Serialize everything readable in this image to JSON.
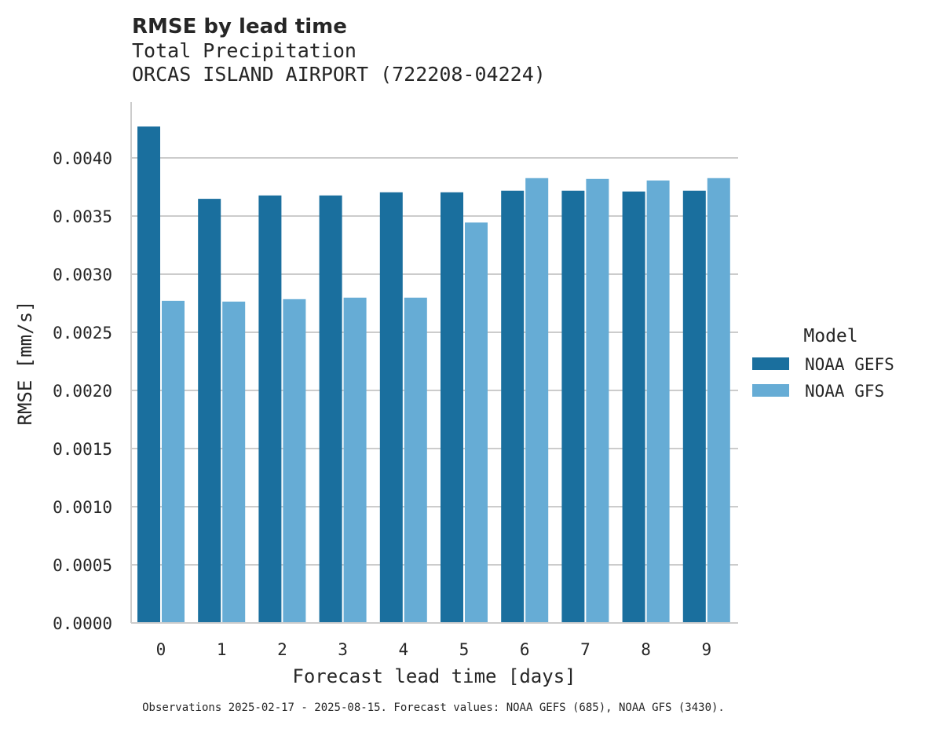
{
  "chart_data": {
    "type": "bar",
    "title": "RMSE by lead time",
    "subtitle_line1": "Total Precipitation",
    "subtitle_line2": "ORCAS ISLAND AIRPORT (722208-04224)",
    "xlabel": "Forecast lead time [days]",
    "ylabel": "RMSE [mm/s]",
    "categories": [
      "0",
      "1",
      "2",
      "3",
      "4",
      "5",
      "6",
      "7",
      "8",
      "9"
    ],
    "ylim": [
      0,
      0.0045
    ],
    "yticks": [
      0.0,
      0.0005,
      0.001,
      0.0015,
      0.002,
      0.0025,
      0.003,
      0.0035,
      0.004
    ],
    "ytick_labels": [
      "0.0000",
      "0.0005",
      "0.0010",
      "0.0015",
      "0.0020",
      "0.0025",
      "0.0030",
      "0.0035",
      "0.0040"
    ],
    "grid": "horizontal",
    "legend": {
      "title": "Model",
      "placement": "right"
    },
    "series": [
      {
        "name": "NOAA GEFS",
        "color": "#1a6f9e",
        "values": [
          0.00427,
          0.003648,
          0.003677,
          0.003677,
          0.003704,
          0.003704,
          0.003718,
          0.003718,
          0.003711,
          0.003718
        ]
      },
      {
        "name": "NOAA GFS",
        "color": "#66acd5",
        "values": [
          0.002771,
          0.002764,
          0.002785,
          0.002798,
          0.002798,
          0.003444,
          0.003826,
          0.003819,
          0.003806,
          0.003826
        ]
      }
    ],
    "caption": "Observations 2025-02-17 - 2025-08-15. Forecast values: NOAA GEFS (685), NOAA GFS (3430)."
  }
}
